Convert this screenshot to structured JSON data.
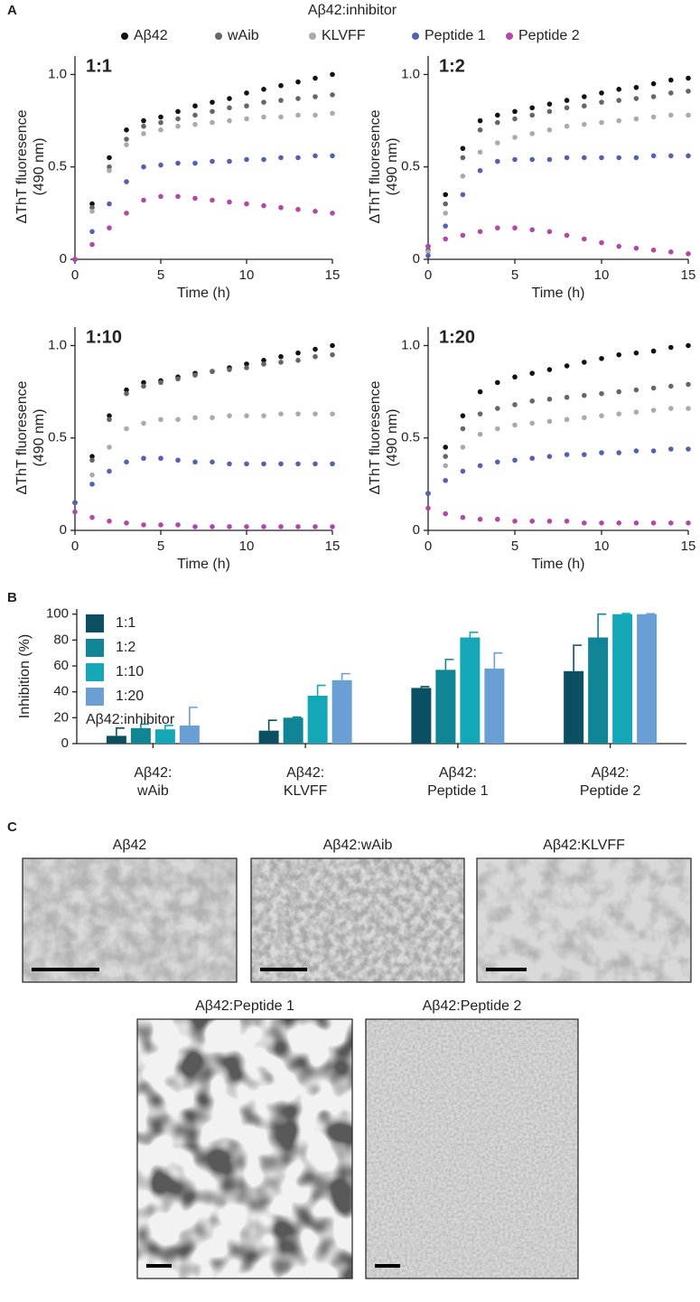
{
  "panel_labels": [
    "A",
    "B",
    "C"
  ],
  "chart_data": [
    {
      "type": "scatter",
      "title": "1:1",
      "legend_title": "Aβ42:inhibitor",
      "xlabel": "Time (h)",
      "ylabel": [
        "ΔThT fluoresence",
        "(490 nm)"
      ],
      "x": [
        0,
        1,
        2,
        3,
        4,
        5,
        6,
        7,
        8,
        9,
        10,
        11,
        12,
        13,
        14,
        15
      ],
      "xlim": [
        0,
        15
      ],
      "xticks": [
        0,
        5,
        10,
        15
      ],
      "ylim": [
        0,
        1.1
      ],
      "yticks": [
        0,
        0.5,
        {
          "value": 1,
          "label": "1.0"
        }
      ],
      "series": [
        {
          "name": "Aβ42",
          "color": "#111111",
          "values": [
            0,
            0.3,
            0.55,
            0.7,
            0.75,
            0.77,
            0.8,
            0.83,
            0.85,
            0.87,
            0.9,
            0.92,
            0.94,
            0.96,
            0.98,
            1.0
          ]
        },
        {
          "name": "wAib",
          "color": "#666666",
          "values": [
            0,
            0.28,
            0.5,
            0.65,
            0.72,
            0.74,
            0.76,
            0.78,
            0.8,
            0.82,
            0.83,
            0.85,
            0.86,
            0.87,
            0.88,
            0.89
          ]
        },
        {
          "name": "KLVFF",
          "color": "#aaaaaa",
          "values": [
            0,
            0.26,
            0.48,
            0.62,
            0.68,
            0.7,
            0.72,
            0.73,
            0.74,
            0.75,
            0.76,
            0.77,
            0.77,
            0.78,
            0.78,
            0.79
          ]
        },
        {
          "name": "Peptide 1",
          "color": "#5560b0",
          "values": [
            0,
            0.15,
            0.3,
            0.42,
            0.5,
            0.51,
            0.52,
            0.52,
            0.53,
            0.53,
            0.54,
            0.54,
            0.55,
            0.55,
            0.56,
            0.56
          ]
        },
        {
          "name": "Peptide 2",
          "color": "#b048a8",
          "values": [
            0,
            0.08,
            0.17,
            0.25,
            0.32,
            0.34,
            0.34,
            0.33,
            0.32,
            0.31,
            0.3,
            0.29,
            0.28,
            0.27,
            0.26,
            0.25
          ]
        }
      ]
    },
    {
      "type": "scatter",
      "title": "1:2",
      "xlabel": "Time (h)",
      "ylabel": [
        "ΔThT fluoresence",
        "(490 nm)"
      ],
      "x": [
        0,
        1,
        2,
        3,
        4,
        5,
        6,
        7,
        8,
        9,
        10,
        11,
        12,
        13,
        14,
        15
      ],
      "xlim": [
        0,
        15
      ],
      "xticks": [
        0,
        5,
        10,
        15
      ],
      "ylim": [
        0,
        1.1
      ],
      "yticks": [
        0,
        0.5,
        {
          "value": 1,
          "label": "1.0"
        }
      ],
      "series": [
        {
          "color": "#111111",
          "values": [
            0.07,
            0.35,
            0.6,
            0.75,
            0.78,
            0.8,
            0.82,
            0.84,
            0.86,
            0.88,
            0.9,
            0.92,
            0.93,
            0.95,
            0.97,
            0.98
          ]
        },
        {
          "color": "#666666",
          "values": [
            0.05,
            0.3,
            0.55,
            0.7,
            0.74,
            0.76,
            0.78,
            0.8,
            0.82,
            0.83,
            0.85,
            0.86,
            0.87,
            0.88,
            0.9,
            0.91
          ]
        },
        {
          "color": "#aaaaaa",
          "values": [
            0.04,
            0.25,
            0.45,
            0.58,
            0.63,
            0.66,
            0.68,
            0.7,
            0.72,
            0.73,
            0.74,
            0.75,
            0.76,
            0.77,
            0.78,
            0.78
          ]
        },
        {
          "color": "#5560b0",
          "values": [
            0.02,
            0.18,
            0.35,
            0.48,
            0.53,
            0.54,
            0.54,
            0.54,
            0.55,
            0.55,
            0.55,
            0.55,
            0.55,
            0.56,
            0.56,
            0.56
          ]
        },
        {
          "color": "#b048a8",
          "values": [
            0.07,
            0.11,
            0.13,
            0.15,
            0.17,
            0.17,
            0.16,
            0.15,
            0.13,
            0.11,
            0.09,
            0.07,
            0.06,
            0.05,
            0.04,
            0.03
          ]
        }
      ]
    },
    {
      "type": "scatter",
      "title": "1:10",
      "xlabel": "Time (h)",
      "ylabel": [
        "ΔThT fluoresence",
        "(490 nm)"
      ],
      "x": [
        0,
        1,
        2,
        3,
        4,
        5,
        6,
        7,
        8,
        9,
        10,
        11,
        12,
        13,
        14,
        15
      ],
      "xlim": [
        0,
        15
      ],
      "xticks": [
        0,
        5,
        10,
        15
      ],
      "ylim": [
        0,
        1.1
      ],
      "yticks": [
        0,
        0.5,
        {
          "value": 1,
          "label": "1.0"
        }
      ],
      "series": [
        {
          "color": "#111111",
          "values": [
            0.15,
            0.4,
            0.62,
            0.76,
            0.8,
            0.81,
            0.83,
            0.85,
            0.86,
            0.88,
            0.9,
            0.92,
            0.94,
            0.96,
            0.98,
            1.0
          ]
        },
        {
          "color": "#666666",
          "values": [
            0.15,
            0.38,
            0.6,
            0.74,
            0.78,
            0.8,
            0.82,
            0.84,
            0.86,
            0.87,
            0.88,
            0.9,
            0.91,
            0.92,
            0.94,
            0.95
          ]
        },
        {
          "color": "#aaaaaa",
          "values": [
            0.15,
            0.3,
            0.45,
            0.55,
            0.58,
            0.6,
            0.6,
            0.61,
            0.61,
            0.62,
            0.62,
            0.62,
            0.63,
            0.63,
            0.63,
            0.63
          ]
        },
        {
          "color": "#5560b0",
          "values": [
            0.15,
            0.25,
            0.32,
            0.37,
            0.39,
            0.39,
            0.38,
            0.37,
            0.37,
            0.36,
            0.36,
            0.36,
            0.36,
            0.36,
            0.36,
            0.36
          ]
        },
        {
          "color": "#b048a8",
          "values": [
            0.1,
            0.07,
            0.05,
            0.04,
            0.03,
            0.03,
            0.03,
            0.02,
            0.02,
            0.02,
            0.02,
            0.02,
            0.02,
            0.02,
            0.02,
            0.02
          ]
        }
      ]
    },
    {
      "type": "scatter",
      "title": "1:20",
      "xlabel": "Time (h)",
      "ylabel": [
        "ΔThT fluoresence",
        "(490 nm)"
      ],
      "x": [
        0,
        1,
        2,
        3,
        4,
        5,
        6,
        7,
        8,
        9,
        10,
        11,
        12,
        13,
        14,
        15
      ],
      "xlim": [
        0,
        15
      ],
      "xticks": [
        0,
        5,
        10,
        15
      ],
      "ylim": [
        0,
        1.1
      ],
      "yticks": [
        0,
        0.5,
        {
          "value": 1,
          "label": "1.0"
        }
      ],
      "series": [
        {
          "color": "#111111",
          "values": [
            0.2,
            0.45,
            0.62,
            0.75,
            0.8,
            0.83,
            0.85,
            0.87,
            0.89,
            0.91,
            0.93,
            0.95,
            0.96,
            0.97,
            0.99,
            1.0
          ]
        },
        {
          "color": "#666666",
          "values": [
            0.2,
            0.4,
            0.55,
            0.63,
            0.66,
            0.68,
            0.7,
            0.71,
            0.72,
            0.73,
            0.74,
            0.75,
            0.76,
            0.77,
            0.78,
            0.79
          ]
        },
        {
          "color": "#aaaaaa",
          "values": [
            0.2,
            0.35,
            0.45,
            0.52,
            0.55,
            0.57,
            0.58,
            0.59,
            0.6,
            0.61,
            0.62,
            0.63,
            0.64,
            0.65,
            0.66,
            0.66
          ]
        },
        {
          "color": "#5560b0",
          "values": [
            0.2,
            0.27,
            0.32,
            0.35,
            0.37,
            0.38,
            0.39,
            0.4,
            0.41,
            0.41,
            0.42,
            0.42,
            0.43,
            0.43,
            0.44,
            0.44
          ]
        },
        {
          "color": "#b048a8",
          "values": [
            0.12,
            0.09,
            0.07,
            0.06,
            0.06,
            0.05,
            0.05,
            0.05,
            0.05,
            0.04,
            0.04,
            0.04,
            0.04,
            0.04,
            0.04,
            0.04
          ]
        }
      ]
    },
    {
      "type": "bar",
      "legend_title": "Aβ42:inhibitor",
      "ylabel": "Inhibition (%)",
      "categories": [
        [
          "Aβ42:",
          "wAib"
        ],
        [
          "Aβ42:",
          "KLVFF"
        ],
        [
          "Aβ42:",
          "Peptide 1"
        ],
        [
          "Aβ42:",
          "Peptide 2"
        ]
      ],
      "ylim": [
        0,
        104
      ],
      "yticks": [
        0,
        20,
        40,
        60,
        80,
        100
      ],
      "series": [
        {
          "name": "1:1",
          "color": "#0b4f63",
          "values": [
            6,
            10,
            43,
            56
          ],
          "errors": [
            6,
            8,
            1,
            20
          ]
        },
        {
          "name": "1:2",
          "color": "#0f8595",
          "values": [
            12,
            20,
            57,
            82
          ],
          "errors": [
            3,
            0.5,
            8,
            18
          ]
        },
        {
          "name": "1:10",
          "color": "#13a7b8",
          "values": [
            11,
            37,
            82,
            100
          ],
          "errors": [
            3,
            8,
            4,
            0.5
          ]
        },
        {
          "name": "1:20",
          "color": "#6a9fd6",
          "values": [
            14,
            49,
            58,
            100
          ],
          "errors": [
            14,
            5,
            12,
            0.3
          ]
        }
      ]
    }
  ],
  "micrographs": [
    {
      "title": "Aβ42"
    },
    {
      "title": "Aβ42:wAib"
    },
    {
      "title": "Aβ42:KLVFF"
    },
    {
      "title": "Aβ42:Peptide 1"
    },
    {
      "title": "Aβ42:Peptide 2"
    }
  ]
}
